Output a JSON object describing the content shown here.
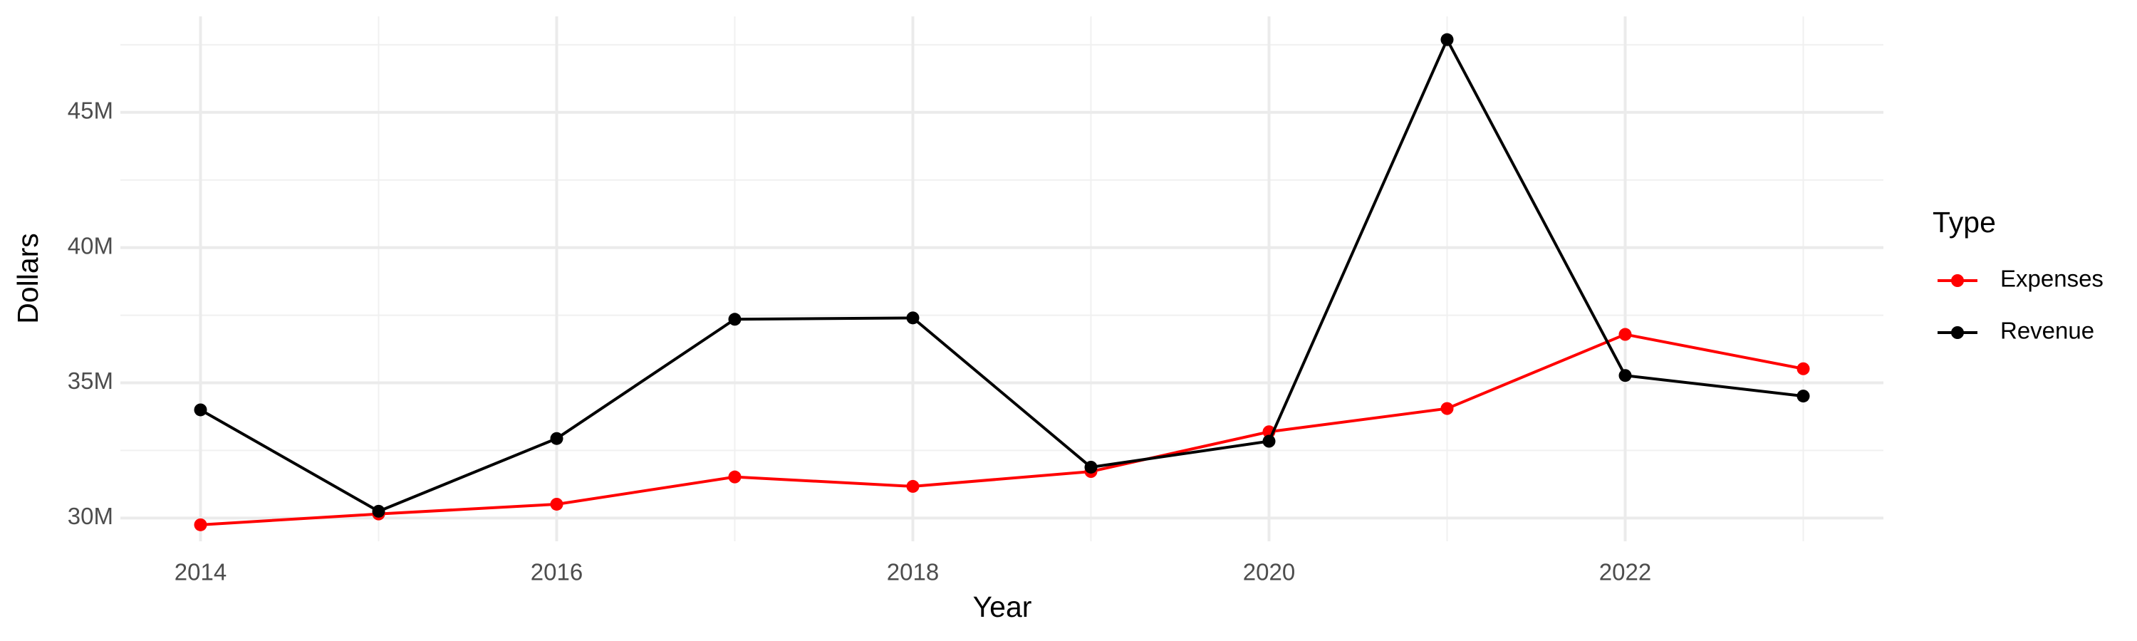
{
  "chart_data": {
    "type": "line",
    "x_label": "Year",
    "y_label": "Dollars",
    "legend_title": "Type",
    "x": [
      2014,
      2015,
      2016,
      2017,
      2018,
      2019,
      2020,
      2021,
      2022,
      2023
    ],
    "series": [
      {
        "name": "Expenses",
        "color": "#ff0000",
        "values": [
          29750000,
          30150000,
          30510000,
          31520000,
          31170000,
          31720000,
          33190000,
          34050000,
          36790000,
          35520000
        ]
      },
      {
        "name": "Revenue",
        "color": "#000000",
        "values": [
          34000000,
          30250000,
          32940000,
          37350000,
          37400000,
          31880000,
          32840000,
          47690000,
          35270000,
          34510000
        ]
      }
    ],
    "xlim": [
      2013.55,
      2023.45
    ],
    "xticks": [
      2014,
      2016,
      2018,
      2020,
      2022
    ],
    "x_minor_ticks": [
      2015,
      2017,
      2019,
      2021,
      2023
    ],
    "ylim": [
      29140000,
      48550000
    ],
    "yticks": [
      {
        "value": 30000000,
        "label": "30M"
      },
      {
        "value": 35000000,
        "label": "35M"
      },
      {
        "value": 40000000,
        "label": "40M"
      },
      {
        "value": 45000000,
        "label": "45M"
      }
    ],
    "y_minor_ticks": [
      32500000,
      37500000,
      42500000,
      47500000
    ],
    "grid": true,
    "legend_position": "right"
  }
}
